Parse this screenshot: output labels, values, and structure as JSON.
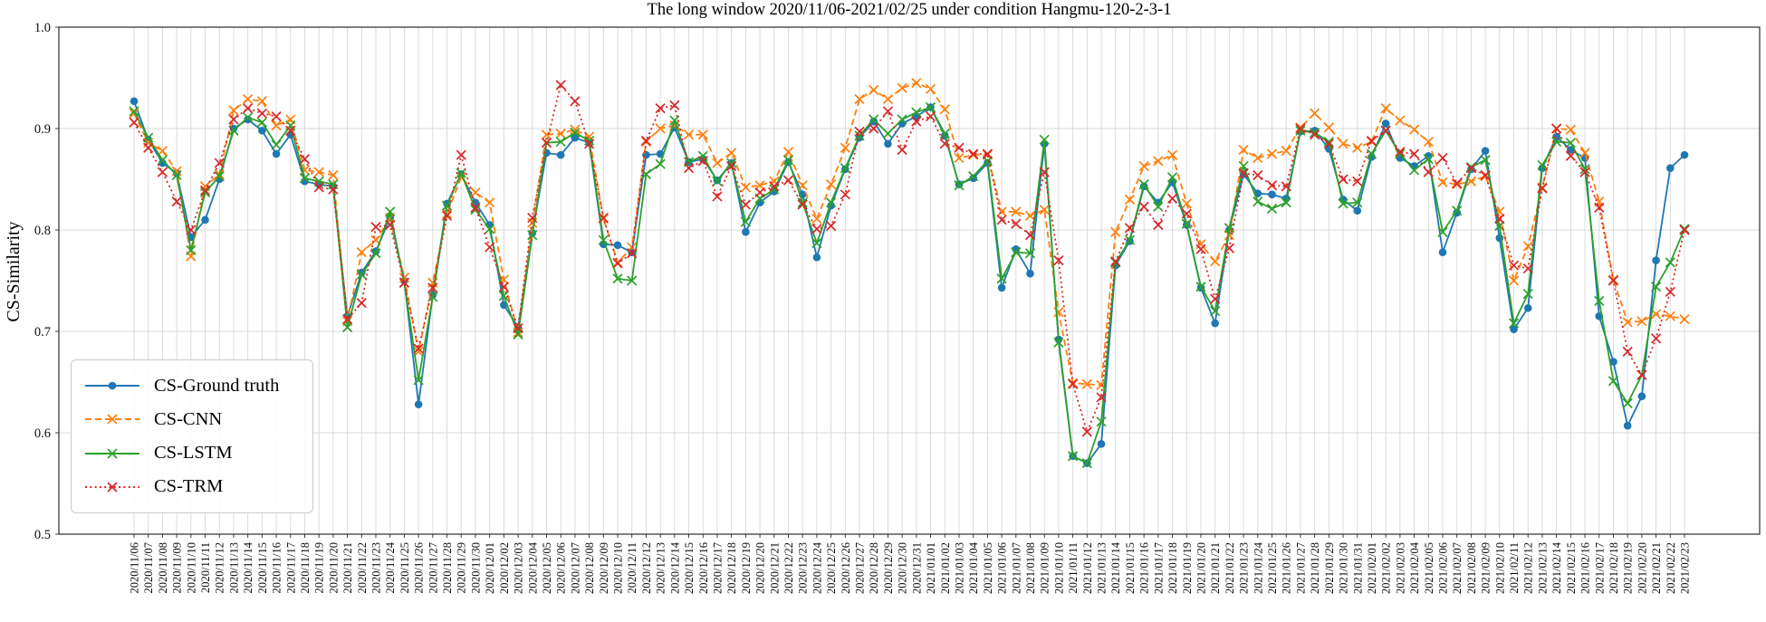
{
  "chart_data": {
    "type": "line",
    "title": "The long window 2020/11/06-2021/02/25 under condition Hangmu-120-2-3-1",
    "xlabel": "",
    "ylabel": "CS-Similarity",
    "ylim": [
      0.5,
      1.0
    ],
    "yticks": [
      0.5,
      0.6,
      0.7,
      0.8,
      0.9,
      1.0
    ],
    "grid": true,
    "legend_position": "lower left",
    "x_tick_rotation": 90,
    "x": [
      "2020/11/06",
      "2020/11/07",
      "2020/11/08",
      "2020/11/09",
      "2020/11/10",
      "2020/11/11",
      "2020/11/12",
      "2020/11/13",
      "2020/11/14",
      "2020/11/15",
      "2020/11/16",
      "2020/11/17",
      "2020/11/18",
      "2020/11/19",
      "2020/11/20",
      "2020/11/21",
      "2020/11/22",
      "2020/11/23",
      "2020/11/24",
      "2020/11/25",
      "2020/11/26",
      "2020/11/27",
      "2020/11/28",
      "2020/11/29",
      "2020/11/30",
      "2020/12/01",
      "2020/12/02",
      "2020/12/03",
      "2020/12/04",
      "2020/12/05",
      "2020/12/06",
      "2020/12/07",
      "2020/12/08",
      "2020/12/09",
      "2020/12/10",
      "2020/12/11",
      "2020/12/12",
      "2020/12/13",
      "2020/12/14",
      "2020/12/15",
      "2020/12/16",
      "2020/12/17",
      "2020/12/18",
      "2020/12/19",
      "2020/12/20",
      "2020/12/21",
      "2020/12/22",
      "2020/12/23",
      "2020/12/24",
      "2020/12/25",
      "2020/12/26",
      "2020/12/27",
      "2020/12/28",
      "2020/12/29",
      "2020/12/30",
      "2020/12/31",
      "2021/01/01",
      "2021/01/02",
      "2021/01/03",
      "2021/01/04",
      "2021/01/05",
      "2021/01/06",
      "2021/01/07",
      "2021/01/08",
      "2021/01/09",
      "2021/01/10",
      "2021/01/11",
      "2021/01/12",
      "2021/01/13",
      "2021/01/14",
      "2021/01/15",
      "2021/01/16",
      "2021/01/17",
      "2021/01/18",
      "2021/01/19",
      "2021/01/20",
      "2021/01/21",
      "2021/01/22",
      "2021/01/23",
      "2021/01/24",
      "2021/01/25",
      "2021/01/26",
      "2021/01/27",
      "2021/01/28",
      "2021/01/29",
      "2021/01/30",
      "2021/01/31",
      "2021/02/01",
      "2021/02/02",
      "2021/02/03",
      "2021/02/04",
      "2021/02/05",
      "2021/02/06",
      "2021/02/07",
      "2021/02/08",
      "2021/02/09",
      "2021/02/10",
      "2021/02/11",
      "2021/02/12",
      "2021/02/13",
      "2021/02/14",
      "2021/02/15",
      "2021/02/16",
      "2021/02/17",
      "2021/02/18",
      "2021/02/19",
      "2021/02/20",
      "2021/02/21",
      "2021/02/22",
      "2021/02/23"
    ],
    "series": [
      {
        "name": "CS-Ground truth",
        "color": "#1f77b4",
        "line": "solid",
        "marker": "circle",
        "values": [
          0.927,
          0.889,
          0.866,
          0.856,
          0.793,
          0.81,
          0.85,
          0.9,
          0.909,
          0.898,
          0.875,
          0.894,
          0.848,
          0.845,
          0.843,
          0.715,
          0.758,
          0.779,
          0.812,
          0.75,
          0.628,
          0.736,
          0.826,
          0.855,
          0.827,
          0.805,
          0.726,
          0.704,
          0.797,
          0.876,
          0.874,
          0.891,
          0.886,
          0.786,
          0.785,
          0.778,
          0.874,
          0.875,
          0.901,
          0.867,
          0.87,
          0.849,
          0.866,
          0.798,
          0.827,
          0.838,
          0.867,
          0.835,
          0.773,
          0.824,
          0.86,
          0.891,
          0.907,
          0.885,
          0.905,
          0.912,
          0.921,
          0.893,
          0.845,
          0.851,
          0.866,
          0.743,
          0.781,
          0.757,
          0.885,
          0.692,
          0.577,
          0.57,
          0.589,
          0.765,
          0.789,
          0.843,
          0.827,
          0.847,
          0.805,
          0.743,
          0.708,
          0.8,
          0.855,
          0.836,
          0.835,
          0.831,
          0.897,
          0.898,
          0.88,
          0.83,
          0.819,
          0.872,
          0.905,
          0.871,
          0.863,
          0.873,
          0.778,
          0.817,
          0.86,
          0.878,
          0.792,
          0.702,
          0.723,
          0.861,
          0.892,
          0.879,
          0.871,
          0.715,
          0.67,
          0.607,
          0.636,
          0.77,
          0.861,
          0.874
        ]
      },
      {
        "name": "CS-CNN",
        "color": "#ff7f0e",
        "line": "dashed",
        "marker": "x",
        "values": [
          0.915,
          0.886,
          0.878,
          0.858,
          0.774,
          0.843,
          0.855,
          0.918,
          0.929,
          0.927,
          0.903,
          0.909,
          0.859,
          0.857,
          0.854,
          0.71,
          0.778,
          0.79,
          0.812,
          0.753,
          0.68,
          0.748,
          0.816,
          0.852,
          0.837,
          0.827,
          0.751,
          0.699,
          0.807,
          0.894,
          0.895,
          0.899,
          0.892,
          0.811,
          0.768,
          0.783,
          0.887,
          0.9,
          0.903,
          0.894,
          0.894,
          0.866,
          0.876,
          0.842,
          0.844,
          0.848,
          0.877,
          0.844,
          0.811,
          0.845,
          0.881,
          0.929,
          0.938,
          0.929,
          0.94,
          0.945,
          0.939,
          0.919,
          0.871,
          0.874,
          0.874,
          0.818,
          0.818,
          0.814,
          0.82,
          0.719,
          0.649,
          0.648,
          0.647,
          0.798,
          0.83,
          0.863,
          0.868,
          0.874,
          0.826,
          0.786,
          0.769,
          0.795,
          0.879,
          0.871,
          0.875,
          0.878,
          0.901,
          0.915,
          0.901,
          0.885,
          0.881,
          0.887,
          0.92,
          0.908,
          0.899,
          0.887,
          0.847,
          0.845,
          0.848,
          0.853,
          0.818,
          0.75,
          0.784,
          0.842,
          0.9,
          0.899,
          0.876,
          0.828,
          0.751,
          0.709,
          0.71,
          0.717,
          0.715,
          0.712
        ]
      },
      {
        "name": "CS-LSTM",
        "color": "#2ca02c",
        "line": "solid",
        "marker": "x",
        "values": [
          0.917,
          0.891,
          0.869,
          0.854,
          0.78,
          0.837,
          0.853,
          0.898,
          0.911,
          0.906,
          0.884,
          0.903,
          0.851,
          0.848,
          0.845,
          0.704,
          0.756,
          0.777,
          0.818,
          0.748,
          0.652,
          0.734,
          0.824,
          0.856,
          0.82,
          0.801,
          0.735,
          0.697,
          0.795,
          0.886,
          0.887,
          0.896,
          0.888,
          0.79,
          0.752,
          0.75,
          0.855,
          0.865,
          0.908,
          0.867,
          0.873,
          0.848,
          0.866,
          0.808,
          0.831,
          0.84,
          0.869,
          0.827,
          0.787,
          0.827,
          0.861,
          0.893,
          0.909,
          0.895,
          0.909,
          0.916,
          0.921,
          0.895,
          0.844,
          0.853,
          0.868,
          0.752,
          0.778,
          0.777,
          0.889,
          0.689,
          0.577,
          0.57,
          0.611,
          0.768,
          0.79,
          0.845,
          0.823,
          0.852,
          0.806,
          0.744,
          0.72,
          0.802,
          0.863,
          0.828,
          0.821,
          0.827,
          0.898,
          0.896,
          0.887,
          0.826,
          0.827,
          0.875,
          0.898,
          0.875,
          0.859,
          0.87,
          0.798,
          0.819,
          0.862,
          0.869,
          0.804,
          0.708,
          0.737,
          0.864,
          0.887,
          0.886,
          0.86,
          0.73,
          0.651,
          0.629,
          0.657,
          0.744,
          0.768,
          0.801
        ]
      },
      {
        "name": "CS-TRM",
        "color": "#d62728",
        "line": "dotted",
        "marker": "x",
        "values": [
          0.906,
          0.881,
          0.857,
          0.828,
          0.8,
          0.839,
          0.866,
          0.909,
          0.92,
          0.915,
          0.912,
          0.898,
          0.87,
          0.842,
          0.84,
          0.712,
          0.728,
          0.803,
          0.805,
          0.748,
          0.683,
          0.743,
          0.814,
          0.874,
          0.822,
          0.783,
          0.744,
          0.703,
          0.812,
          0.886,
          0.943,
          0.927,
          0.885,
          0.812,
          0.767,
          0.777,
          0.888,
          0.92,
          0.923,
          0.861,
          0.868,
          0.833,
          0.863,
          0.825,
          0.837,
          0.843,
          0.849,
          0.825,
          0.801,
          0.804,
          0.835,
          0.897,
          0.9,
          0.917,
          0.879,
          0.907,
          0.912,
          0.885,
          0.881,
          0.875,
          0.875,
          0.81,
          0.806,
          0.795,
          0.857,
          0.77,
          0.648,
          0.601,
          0.635,
          0.769,
          0.802,
          0.823,
          0.805,
          0.831,
          0.816,
          0.781,
          0.732,
          0.782,
          0.856,
          0.854,
          0.844,
          0.843,
          0.9,
          0.894,
          0.885,
          0.85,
          0.848,
          0.888,
          0.898,
          0.877,
          0.875,
          0.857,
          0.871,
          0.846,
          0.861,
          0.854,
          0.811,
          0.765,
          0.762,
          0.841,
          0.9,
          0.873,
          0.857,
          0.822,
          0.75,
          0.68,
          0.657,
          0.693,
          0.739,
          0.8
        ]
      }
    ]
  }
}
